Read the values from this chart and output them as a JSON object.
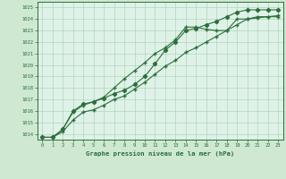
{
  "title": "Graphe pression niveau de la mer (hPa)",
  "background_color": "#cee8d2",
  "plot_bg_color": "#dff2e8",
  "grid_color": "#b0d4bc",
  "line_color": "#2d6e3a",
  "xlim": [
    -0.5,
    23.5
  ],
  "ylim": [
    1013.5,
    1025.5
  ],
  "yticks": [
    1014,
    1015,
    1016,
    1017,
    1018,
    1019,
    1020,
    1021,
    1022,
    1023,
    1024,
    1025
  ],
  "xticks": [
    0,
    1,
    2,
    3,
    4,
    5,
    6,
    7,
    8,
    9,
    10,
    11,
    12,
    13,
    14,
    15,
    16,
    17,
    18,
    19,
    20,
    21,
    22,
    23
  ],
  "series1_x": [
    0,
    1,
    2,
    3,
    4,
    5,
    6,
    7,
    8,
    9,
    10,
    11,
    12,
    13,
    14,
    15,
    16,
    17,
    18,
    19,
    20,
    21,
    22,
    23
  ],
  "series1_y": [
    1013.7,
    1013.7,
    1014.4,
    1015.9,
    1016.5,
    1016.8,
    1017.2,
    1018.0,
    1018.8,
    1019.5,
    1020.2,
    1021.0,
    1021.5,
    1022.2,
    1023.3,
    1023.3,
    1023.1,
    1023.0,
    1023.0,
    1024.0,
    1024.0,
    1024.1,
    1024.2,
    1024.2
  ],
  "series2_x": [
    0,
    1,
    2,
    3,
    4,
    5,
    6,
    7,
    8,
    9,
    10,
    11,
    12,
    13,
    14,
    15,
    16,
    17,
    18,
    19,
    20,
    21,
    22,
    23
  ],
  "series2_y": [
    1013.7,
    1013.7,
    1014.4,
    1016.0,
    1016.6,
    1016.8,
    1017.1,
    1017.5,
    1017.8,
    1018.3,
    1019.0,
    1020.1,
    1021.3,
    1022.0,
    1023.0,
    1023.2,
    1023.5,
    1023.8,
    1024.2,
    1024.6,
    1024.8,
    1024.8,
    1024.8,
    1024.8
  ],
  "series3_x": [
    0,
    1,
    2,
    3,
    4,
    5,
    6,
    7,
    8,
    9,
    10,
    11,
    12,
    13,
    14,
    15,
    16,
    17,
    18,
    19,
    20,
    21,
    22,
    23
  ],
  "series3_y": [
    1013.7,
    1013.7,
    1014.2,
    1015.2,
    1015.9,
    1016.1,
    1016.5,
    1017.0,
    1017.3,
    1017.9,
    1018.5,
    1019.2,
    1019.9,
    1020.4,
    1021.1,
    1021.5,
    1022.0,
    1022.5,
    1023.0,
    1023.5,
    1024.0,
    1024.2,
    1024.2,
    1024.3
  ]
}
